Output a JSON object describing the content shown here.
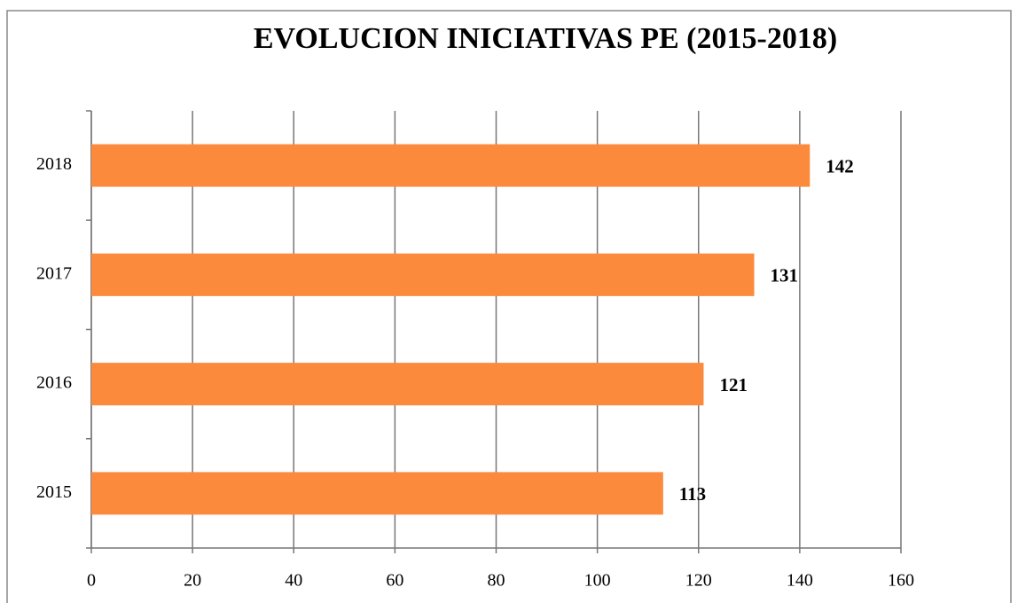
{
  "chart_data": {
    "type": "barh",
    "title": "EVOLUCION INICIATIVAS PE (2015-2018)",
    "categories": [
      "2015",
      "2016",
      "2017",
      "2018"
    ],
    "values": [
      113,
      121,
      131,
      142
    ],
    "color": "#fb8a3c",
    "xlim": [
      0,
      160
    ],
    "xticks": [
      0,
      20,
      40,
      60,
      80,
      100,
      120,
      140,
      160
    ],
    "grid": true
  }
}
